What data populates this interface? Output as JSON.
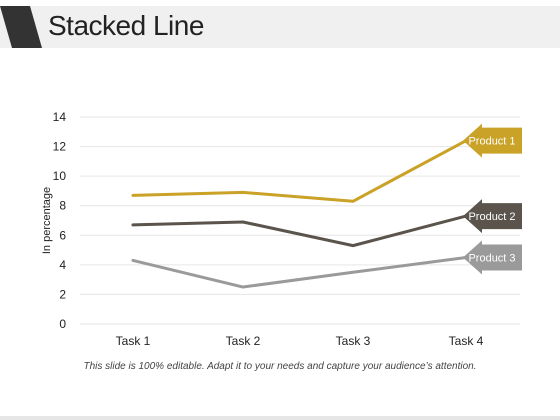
{
  "header": {
    "title": "Stacked Line"
  },
  "footer": {
    "note": "This slide is 100% editable. Adapt it to your needs and capture your audience’s attention."
  },
  "colors": {
    "title_accent": "#333333",
    "grid": "#e6e6e6",
    "axis_text": "#222222"
  },
  "chart_data": {
    "type": "line",
    "title": "",
    "xlabel": "",
    "ylabel": "In percentage",
    "categories": [
      "Task 1",
      "Task 2",
      "Task 3",
      "Task 4"
    ],
    "ylim": [
      0,
      14
    ],
    "yticks": [
      0,
      2,
      4,
      6,
      8,
      10,
      12,
      14
    ],
    "grid": true,
    "series": [
      {
        "name": "Product 1",
        "values": [
          8.7,
          8.9,
          8.3,
          12.4
        ],
        "color": "#c9a227"
      },
      {
        "name": "Product 2",
        "values": [
          6.7,
          6.9,
          5.3,
          7.3
        ],
        "color": "#5a544c"
      },
      {
        "name": "Product 3",
        "values": [
          4.3,
          2.5,
          3.5,
          4.5
        ],
        "color": "#9a9a9a"
      }
    ]
  }
}
